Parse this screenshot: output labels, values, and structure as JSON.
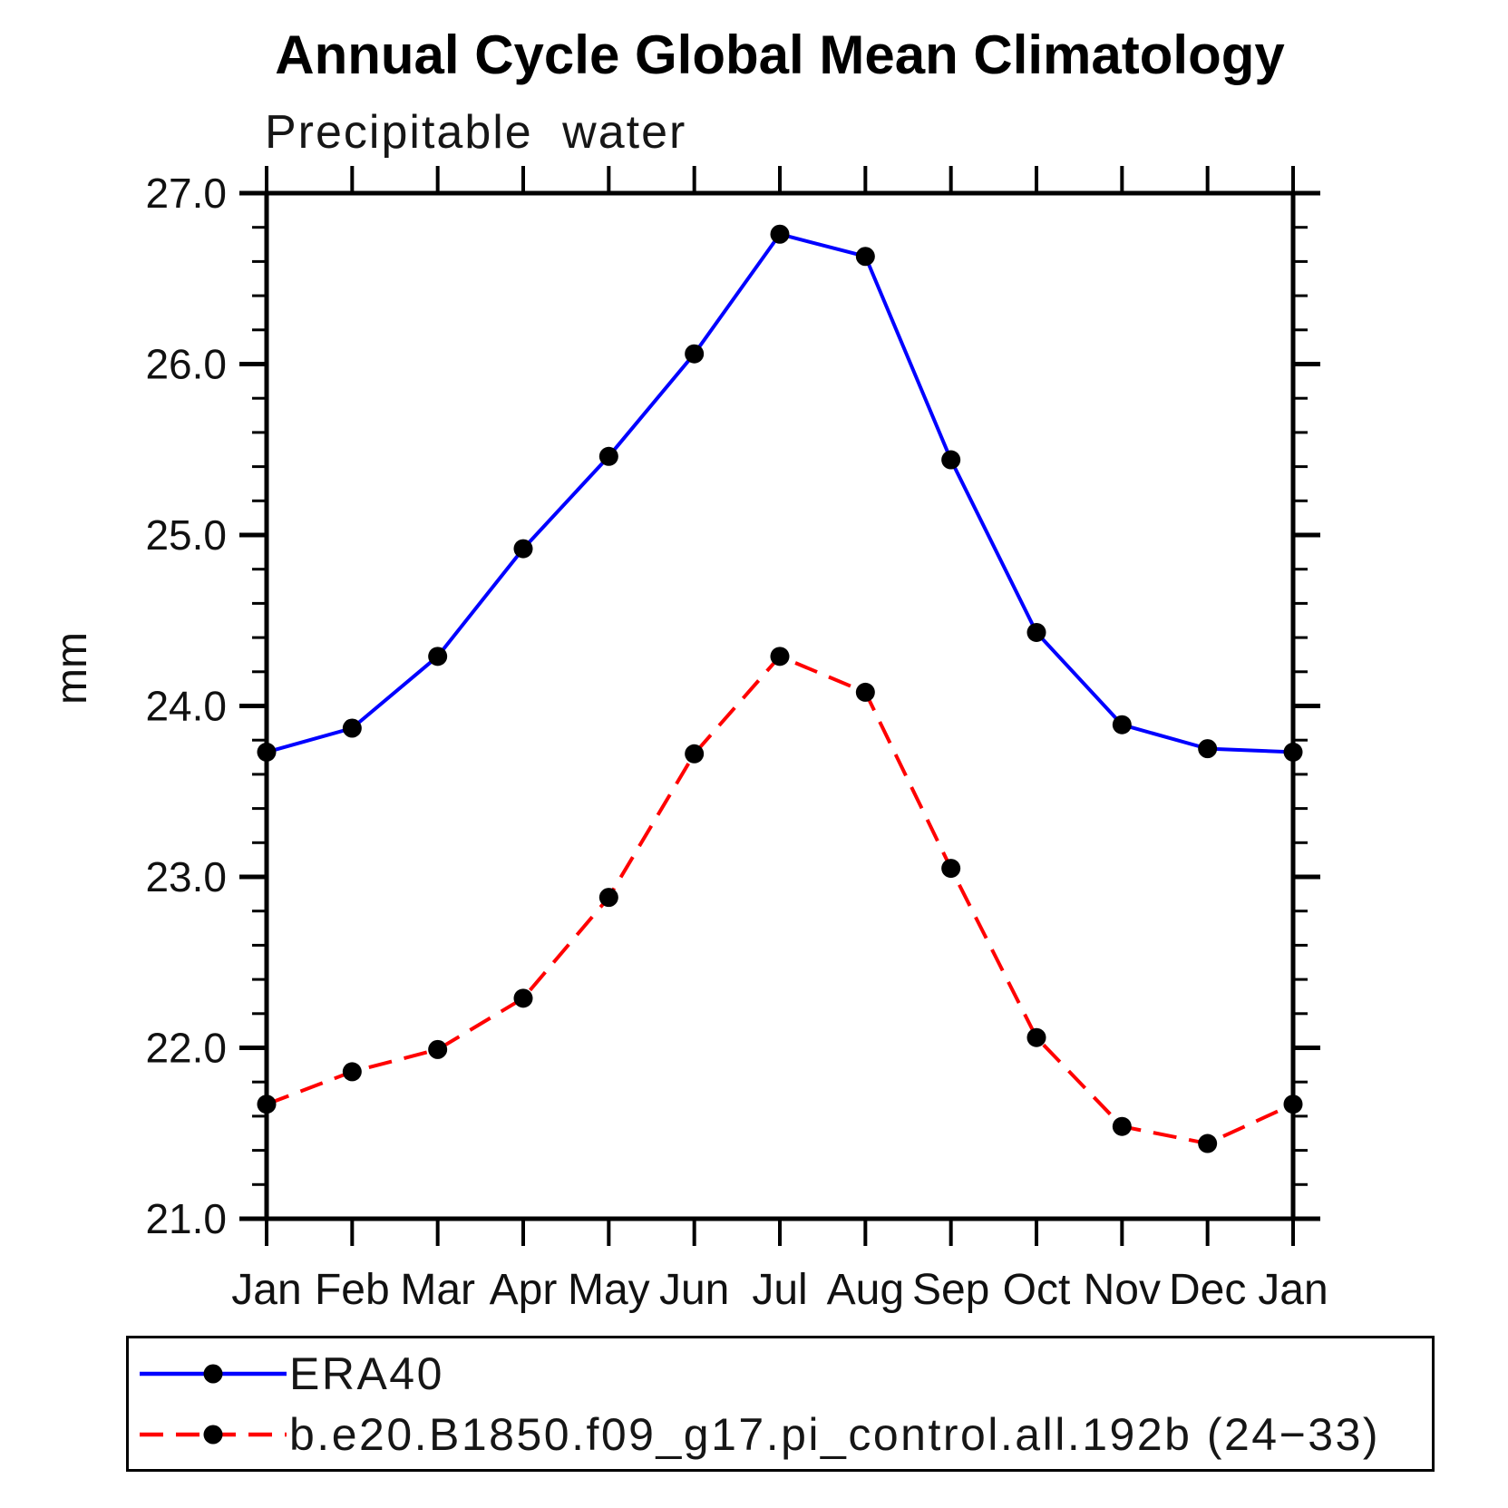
{
  "title": "Annual Cycle Global Mean Climatology",
  "subtitle": "Precipitable water",
  "y_axis_label": "mm",
  "colors": {
    "era40_line": "#0000ff",
    "model_line": "#ff0000",
    "marker": "#000000",
    "axis": "#000000"
  },
  "chart_data": {
    "type": "line",
    "title": "Annual Cycle Global Mean Climatology",
    "subtitle": "Precipitable water",
    "ylabel": "mm",
    "xlabel": "",
    "ylim": [
      21.0,
      27.0
    ],
    "y_major_tick_step": 1.0,
    "y_minor_tick_step": 0.2,
    "grid": false,
    "legend_position": "bottom",
    "y_tick_labels": [
      "27.0",
      "26.0",
      "25.0",
      "24.0",
      "23.0",
      "22.0",
      "21.0"
    ],
    "categories": [
      "Jan",
      "Feb",
      "Mar",
      "Apr",
      "May",
      "Jun",
      "Jul",
      "Aug",
      "Sep",
      "Oct",
      "Nov",
      "Dec",
      "Jan"
    ],
    "series": [
      {
        "name": "ERA40",
        "color": "#0000ff",
        "line_style": "solid",
        "marker": "circle",
        "marker_color": "#000000",
        "values": [
          23.73,
          23.87,
          24.29,
          24.92,
          25.46,
          26.06,
          26.76,
          26.63,
          25.44,
          24.43,
          23.89,
          23.75,
          23.73
        ]
      },
      {
        "name": "b.e20.B1850.f09_g17.pi_control.all.192b (24−33)",
        "color": "#ff0000",
        "line_style": "dashed",
        "marker": "circle",
        "marker_color": "#000000",
        "values": [
          21.67,
          21.86,
          21.99,
          22.29,
          22.88,
          23.72,
          24.29,
          24.08,
          23.05,
          22.06,
          21.54,
          21.44,
          21.67
        ]
      }
    ]
  }
}
